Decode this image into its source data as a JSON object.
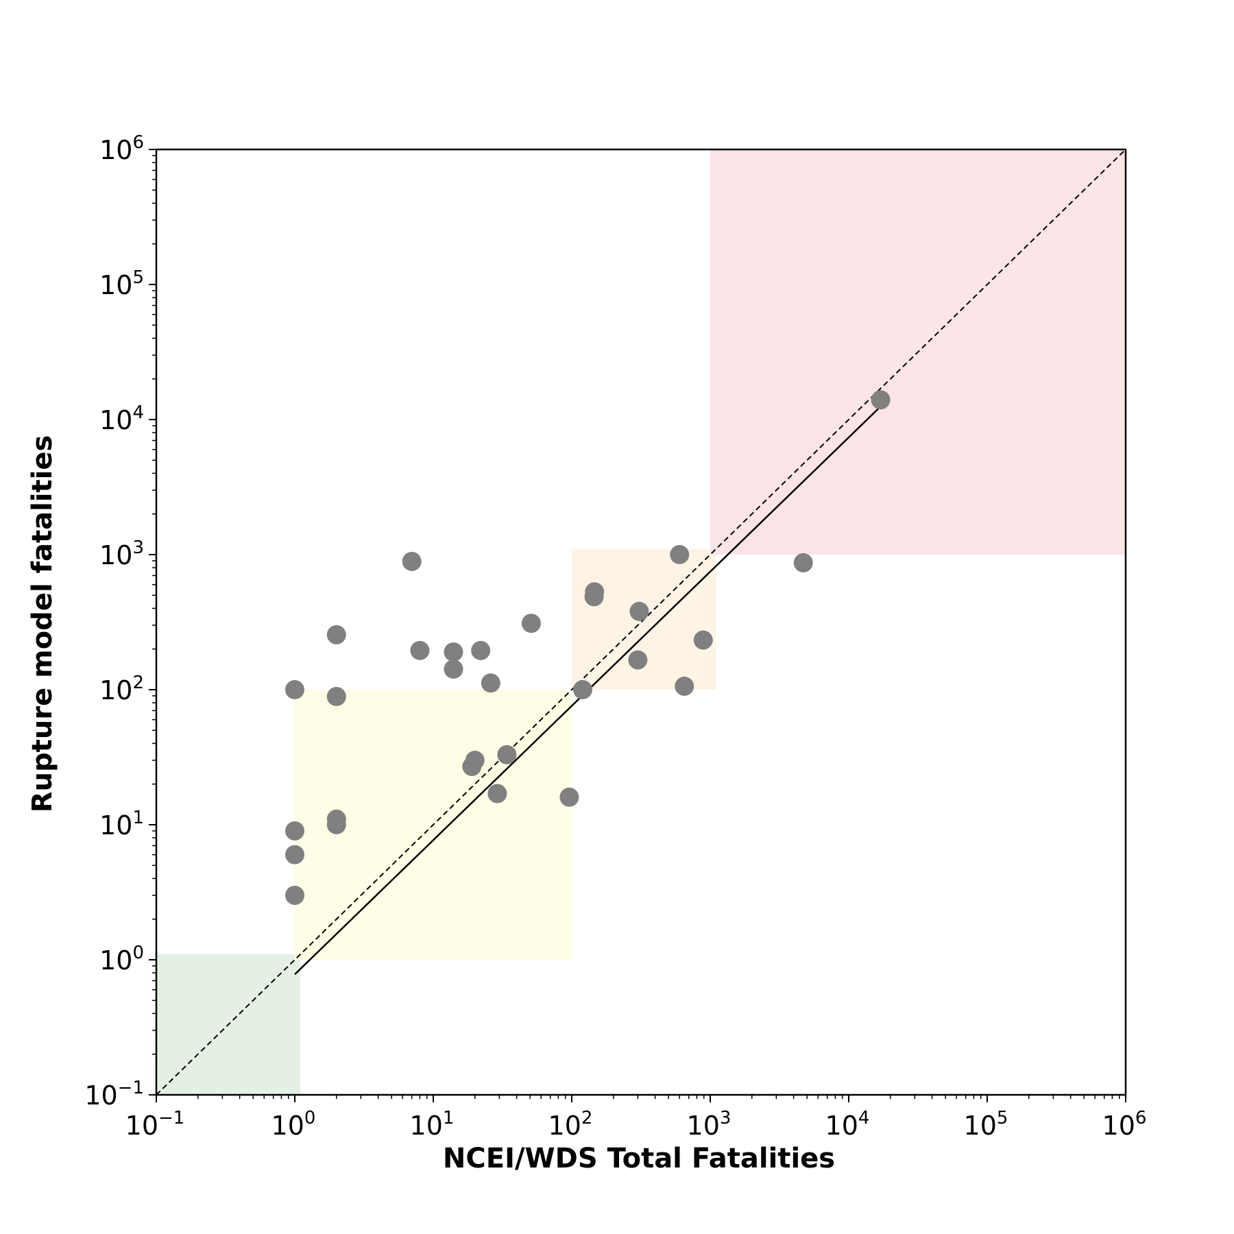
{
  "chart_data": {
    "type": "scatter",
    "title": "",
    "xlabel": "NCEI/WDS Total Fatalities",
    "ylabel": "Rupture model fatalities",
    "xscale": "log",
    "yscale": "log",
    "xlim": [
      0.1,
      1000000
    ],
    "ylim": [
      0.1,
      1000000
    ],
    "grid": false,
    "legend": "none",
    "x_ticks": [
      {
        "base": "10",
        "exp": "−1",
        "value": 0.1
      },
      {
        "base": "10",
        "exp": "0",
        "value": 1
      },
      {
        "base": "10",
        "exp": "1",
        "value": 10
      },
      {
        "base": "10",
        "exp": "2",
        "value": 100
      },
      {
        "base": "10",
        "exp": "3",
        "value": 1000
      },
      {
        "base": "10",
        "exp": "4",
        "value": 10000
      },
      {
        "base": "10",
        "exp": "5",
        "value": 100000
      },
      {
        "base": "10",
        "exp": "6",
        "value": 1000000
      }
    ],
    "y_ticks": [
      {
        "base": "10",
        "exp": "−1",
        "value": 0.1
      },
      {
        "base": "10",
        "exp": "0",
        "value": 1
      },
      {
        "base": "10",
        "exp": "1",
        "value": 10
      },
      {
        "base": "10",
        "exp": "2",
        "value": 100
      },
      {
        "base": "10",
        "exp": "3",
        "value": 1000
      },
      {
        "base": "10",
        "exp": "4",
        "value": 10000
      },
      {
        "base": "10",
        "exp": "5",
        "value": 100000
      },
      {
        "base": "10",
        "exp": "6",
        "value": 1000000
      }
    ],
    "shaded_regions": [
      {
        "x": [
          0.1,
          1.1
        ],
        "y": [
          0.1,
          1.1
        ],
        "color": "#e5f0e5"
      },
      {
        "x": [
          1,
          100
        ],
        "y": [
          1,
          100
        ],
        "color": "#fefee6"
      },
      {
        "x": [
          100,
          1100
        ],
        "y": [
          100,
          1100
        ],
        "color": "#fdf4e6"
      },
      {
        "x": [
          1000,
          1000000
        ],
        "y": [
          1000,
          1000000
        ],
        "color": "#fde4e6"
      }
    ],
    "reference_line": {
      "x": [
        0.1,
        1000000
      ],
      "y": [
        0.1,
        1000000
      ],
      "style": "dashed",
      "color": "#000000"
    },
    "fit_line": {
      "x": [
        1,
        17000
      ],
      "y": [
        0.78,
        12500
      ],
      "style": "solid",
      "color": "#000000"
    },
    "marker_color": "#808080",
    "points": [
      {
        "x": 1,
        "y": 100
      },
      {
        "x": 1,
        "y": 9
      },
      {
        "x": 1,
        "y": 6
      },
      {
        "x": 1,
        "y": 3
      },
      {
        "x": 2,
        "y": 255
      },
      {
        "x": 2,
        "y": 89
      },
      {
        "x": 2,
        "y": 11
      },
      {
        "x": 2,
        "y": 10
      },
      {
        "x": 7,
        "y": 890
      },
      {
        "x": 8,
        "y": 195
      },
      {
        "x": 14,
        "y": 190
      },
      {
        "x": 14,
        "y": 142
      },
      {
        "x": 22,
        "y": 195
      },
      {
        "x": 26,
        "y": 112
      },
      {
        "x": 19,
        "y": 27
      },
      {
        "x": 20,
        "y": 30
      },
      {
        "x": 29,
        "y": 17
      },
      {
        "x": 34,
        "y": 33
      },
      {
        "x": 51,
        "y": 310
      },
      {
        "x": 96,
        "y": 16
      },
      {
        "x": 120,
        "y": 100
      },
      {
        "x": 146,
        "y": 530
      },
      {
        "x": 145,
        "y": 488
      },
      {
        "x": 307,
        "y": 380
      },
      {
        "x": 300,
        "y": 166
      },
      {
        "x": 600,
        "y": 1000
      },
      {
        "x": 650,
        "y": 106
      },
      {
        "x": 890,
        "y": 233
      },
      {
        "x": 4700,
        "y": 870
      },
      {
        "x": 17000,
        "y": 14000
      }
    ]
  }
}
